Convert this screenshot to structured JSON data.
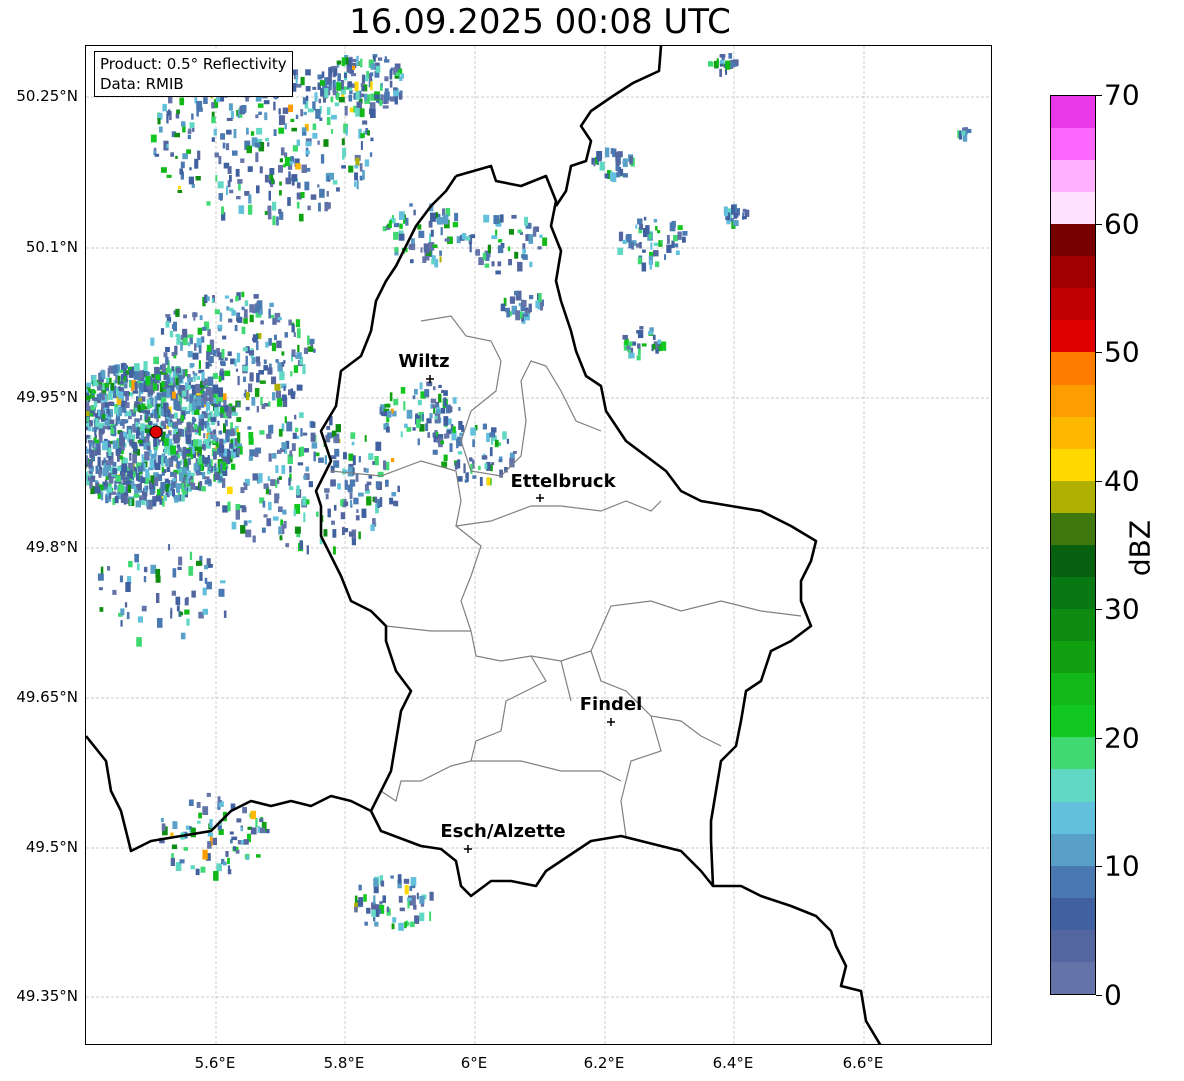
{
  "title": "16.09.2025 00:08 UTC",
  "info": {
    "product": "Product: 0.5° Reflectivity",
    "data": "Data: RMIB"
  },
  "axes": {
    "lat_ticks": [
      "50.25°N",
      "50.1°N",
      "49.95°N",
      "49.8°N",
      "49.65°N",
      "49.5°N",
      "49.35°N"
    ],
    "lon_ticks": [
      "5.6°E",
      "5.8°E",
      "6°E",
      "6.2°E",
      "6.4°E",
      "6.6°E"
    ]
  },
  "cities": [
    "Wiltz",
    "Ettelbruck",
    "Findel",
    "Esch/Alzette"
  ],
  "colorbar": {
    "label": "dBZ",
    "ticks": [
      "0",
      "10",
      "20",
      "30",
      "40",
      "50",
      "60",
      "70"
    ],
    "colors": [
      "#6474a8",
      "#5466a0",
      "#4060a0",
      "#4a78b0",
      "#58a0c8",
      "#62c0dc",
      "#60d8c4",
      "#40d870",
      "#12c820",
      "#12b818",
      "#10a010",
      "#0e8c12",
      "#087812",
      "#066010",
      "#407810",
      "#b0b000",
      "#ffd800",
      "#ffb800",
      "#ff9c00",
      "#ff7c00",
      "#e00000",
      "#c00000",
      "#a00000",
      "#780000",
      "#ffe0ff",
      "#ffb0ff",
      "#ff68ff",
      "#e838e8"
    ]
  }
}
